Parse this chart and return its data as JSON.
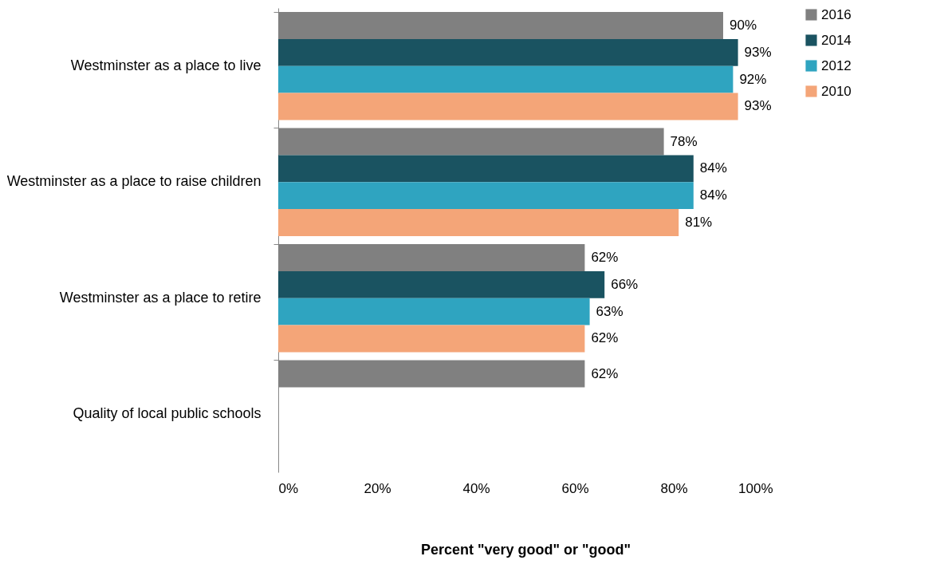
{
  "chart_data": {
    "type": "bar",
    "orientation": "horizontal",
    "xlabel": "Percent \"very good\" or \"good\"",
    "categories": [
      "Westminster as a place to live",
      "Westminster as a place to raise children",
      "Westminster as a place to retire",
      "Quality of local public schools"
    ],
    "series": [
      {
        "name": "2016",
        "color": "#808080",
        "values": [
          90,
          78,
          62,
          62
        ],
        "value_labels": [
          "90%",
          "78%",
          "62%",
          "62%"
        ]
      },
      {
        "name": "2014",
        "color": "#1a5361",
        "values": [
          93,
          84,
          66,
          null
        ],
        "value_labels": [
          "93%",
          "84%",
          "66%",
          null
        ]
      },
      {
        "name": "2012",
        "color": "#2fa4c0",
        "values": [
          92,
          84,
          63,
          null
        ],
        "value_labels": [
          "92%",
          "84%",
          "63%",
          null
        ]
      },
      {
        "name": "2010",
        "color": "#f4a578",
        "values": [
          93,
          81,
          62,
          null
        ],
        "value_labels": [
          "93%",
          "81%",
          "62%",
          null
        ]
      }
    ],
    "xlim": [
      0,
      100
    ],
    "xticks": [
      {
        "value": 0,
        "label": "0%"
      },
      {
        "value": 20,
        "label": "20%"
      },
      {
        "value": 40,
        "label": "40%"
      },
      {
        "value": 60,
        "label": "60%"
      },
      {
        "value": 80,
        "label": "80%"
      },
      {
        "value": 100,
        "label": "100%"
      }
    ],
    "grid": false,
    "legend": "top right"
  }
}
